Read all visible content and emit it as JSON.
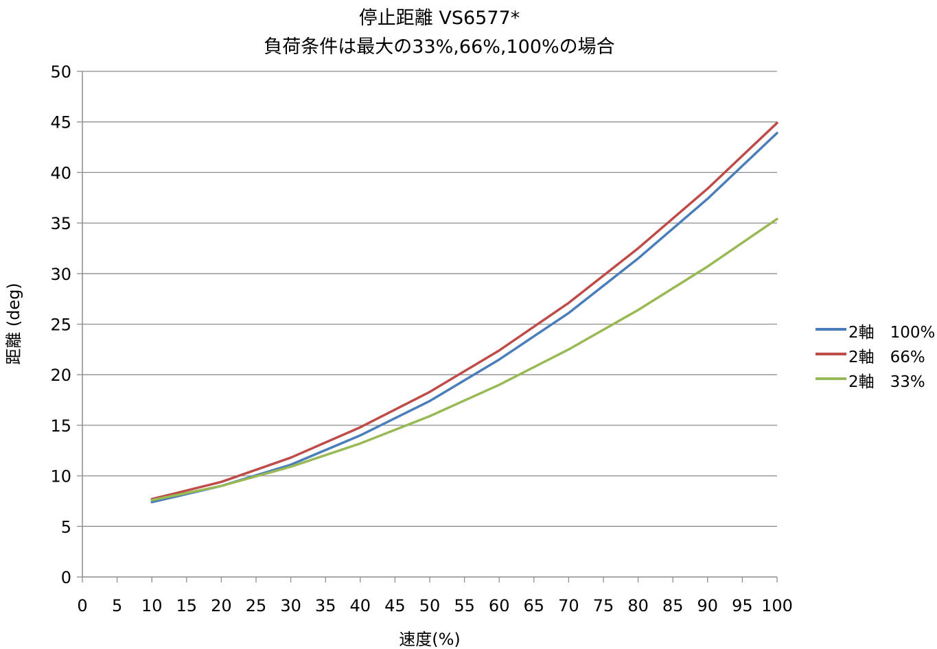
{
  "chart_data": {
    "type": "line",
    "title": "停止距離 VS6577*",
    "subtitle": "負荷条件は最大の33%,66%,100%の場合",
    "xlabel": "速度(%)",
    "ylabel": "距離 (deg)",
    "xlim": [
      0,
      100
    ],
    "ylim": [
      0,
      50
    ],
    "x_ticks": [
      "0",
      "5",
      "10",
      "15",
      "20",
      "25",
      "30",
      "35",
      "40",
      "45",
      "50",
      "55",
      "60",
      "65",
      "70",
      "75",
      "80",
      "85",
      "90",
      "95",
      "100"
    ],
    "y_ticks": [
      "0",
      "5",
      "10",
      "15",
      "20",
      "25",
      "30",
      "35",
      "40",
      "45",
      "50"
    ],
    "grid": "horizontal",
    "legend_position": "right",
    "x": [
      10,
      20,
      30,
      40,
      50,
      60,
      70,
      80,
      90,
      100
    ],
    "series": [
      {
        "name": "2軸　100%",
        "color": "#4a7ebb",
        "values": [
          7.4,
          9.0,
          11.1,
          14.0,
          17.4,
          21.5,
          26.1,
          31.5,
          37.4,
          43.9
        ]
      },
      {
        "name": "2軸　66%",
        "color": "#be4b48",
        "values": [
          7.7,
          9.4,
          11.8,
          14.8,
          18.3,
          22.4,
          27.1,
          32.5,
          38.4,
          44.9
        ]
      },
      {
        "name": "2軸　33%",
        "color": "#98b954",
        "values": [
          7.6,
          9.0,
          10.9,
          13.2,
          15.9,
          19.0,
          22.5,
          26.4,
          30.7,
          35.4
        ]
      }
    ]
  }
}
